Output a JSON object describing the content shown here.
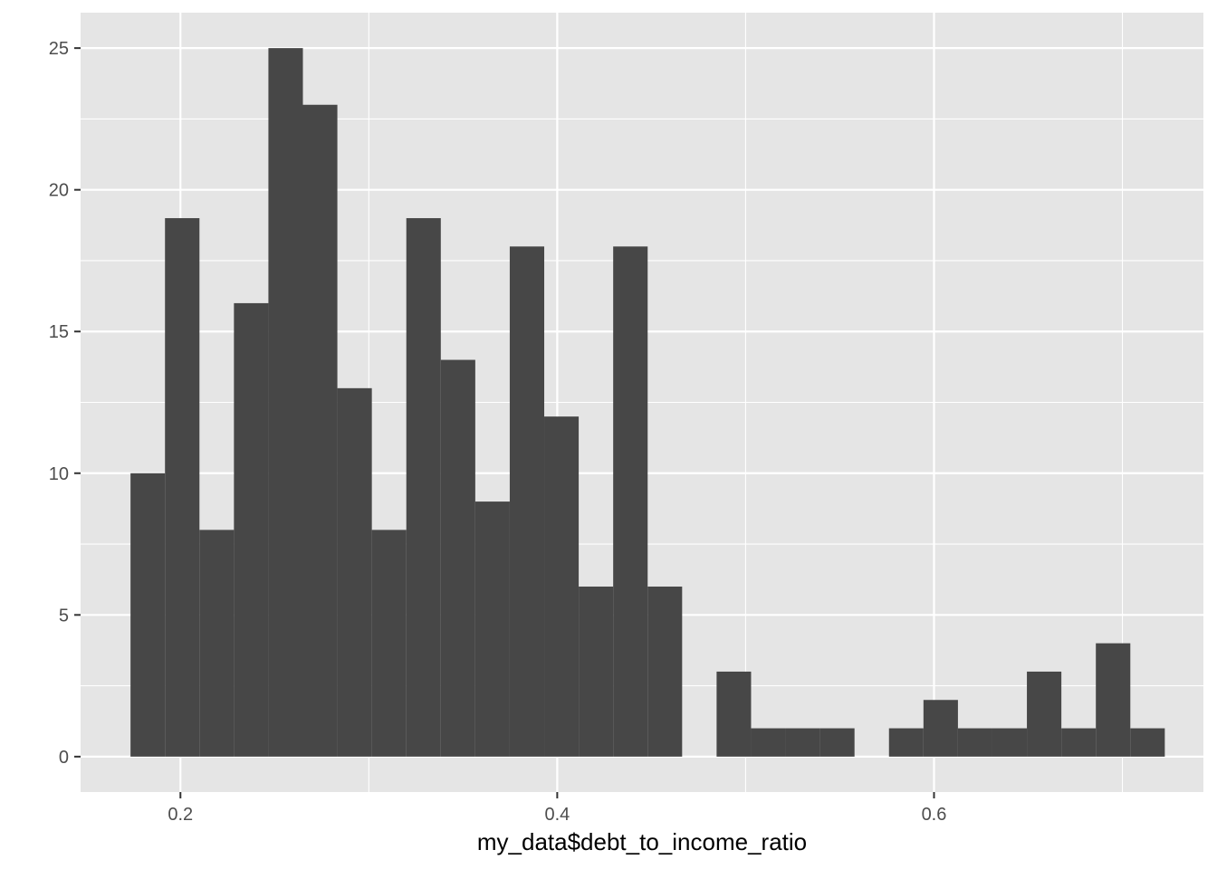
{
  "chart_data": {
    "type": "bar",
    "title": "",
    "xlabel": "my_data$debt_to_income_ratio",
    "ylabel": "",
    "xlim": [
      0.147,
      0.743
    ],
    "ylim": [
      -1.25,
      26.25
    ],
    "x_ticks": [
      0.2,
      0.4,
      0.6
    ],
    "x_tick_labels": [
      "0.2",
      "0.4",
      "0.6"
    ],
    "y_ticks": [
      0,
      5,
      10,
      15,
      20,
      25
    ],
    "y_tick_labels": [
      "0",
      "5",
      "10",
      "15",
      "20",
      "25"
    ],
    "grid": true,
    "bin_width": 0.0183,
    "bins": [
      {
        "start": 0.1735,
        "end": 0.1918,
        "count": 10
      },
      {
        "start": 0.1918,
        "end": 0.2101,
        "count": 19
      },
      {
        "start": 0.2101,
        "end": 0.2284,
        "count": 8
      },
      {
        "start": 0.2284,
        "end": 0.2467,
        "count": 16
      },
      {
        "start": 0.2467,
        "end": 0.265,
        "count": 25
      },
      {
        "start": 0.265,
        "end": 0.2833,
        "count": 23
      },
      {
        "start": 0.2833,
        "end": 0.3016,
        "count": 13
      },
      {
        "start": 0.3016,
        "end": 0.3199,
        "count": 8
      },
      {
        "start": 0.3199,
        "end": 0.3382,
        "count": 19
      },
      {
        "start": 0.3382,
        "end": 0.3565,
        "count": 14
      },
      {
        "start": 0.3565,
        "end": 0.3748,
        "count": 9
      },
      {
        "start": 0.3748,
        "end": 0.3931,
        "count": 18
      },
      {
        "start": 0.3931,
        "end": 0.4114,
        "count": 12
      },
      {
        "start": 0.4114,
        "end": 0.4297,
        "count": 6
      },
      {
        "start": 0.4297,
        "end": 0.448,
        "count": 18
      },
      {
        "start": 0.448,
        "end": 0.4663,
        "count": 6
      },
      {
        "start": 0.4663,
        "end": 0.4846,
        "count": 0
      },
      {
        "start": 0.4846,
        "end": 0.5029,
        "count": 3
      },
      {
        "start": 0.5029,
        "end": 0.5212,
        "count": 1
      },
      {
        "start": 0.5212,
        "end": 0.5395,
        "count": 1
      },
      {
        "start": 0.5395,
        "end": 0.5578,
        "count": 1
      },
      {
        "start": 0.5578,
        "end": 0.5761,
        "count": 0
      },
      {
        "start": 0.5761,
        "end": 0.5944,
        "count": 1
      },
      {
        "start": 0.5944,
        "end": 0.6127,
        "count": 2
      },
      {
        "start": 0.6127,
        "end": 0.631,
        "count": 1
      },
      {
        "start": 0.631,
        "end": 0.6493,
        "count": 1
      },
      {
        "start": 0.6493,
        "end": 0.6676,
        "count": 3
      },
      {
        "start": 0.6676,
        "end": 0.6859,
        "count": 1
      },
      {
        "start": 0.6859,
        "end": 0.7042,
        "count": 4
      },
      {
        "start": 0.7042,
        "end": 0.7225,
        "count": 1
      }
    ],
    "colors": {
      "panel": "#e5e5e5",
      "grid_major": "#ffffff",
      "bar": "#474747",
      "tick_text": "#4d4d4d",
      "title_text": "#000000"
    }
  }
}
